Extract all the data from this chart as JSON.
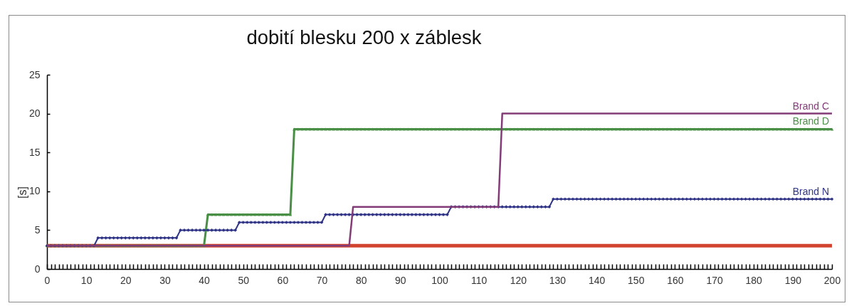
{
  "chart_data": {
    "type": "line",
    "title": "dobití blesku 200 x záblesk",
    "ylabel": "[s]",
    "xlim": [
      0,
      200
    ],
    "ylim": [
      0,
      25
    ],
    "yticks": [
      0,
      5,
      10,
      15,
      20,
      25
    ],
    "xticks": [
      0,
      {
        "value": 1,
        "label": null
      },
      {
        "value": 2,
        "label": null
      },
      {
        "value": 3,
        "label": null
      },
      {
        "value": 4,
        "label": null
      },
      {
        "value": 5,
        "label": null
      },
      {
        "value": 6,
        "label": null
      },
      {
        "value": 7,
        "label": null
      },
      {
        "value": 8,
        "label": null
      },
      {
        "value": 9,
        "label": null
      },
      10,
      {
        "value": 11,
        "label": null
      },
      {
        "value": 12,
        "label": null
      },
      {
        "value": 13,
        "label": null
      },
      {
        "value": 14,
        "label": null
      },
      {
        "value": 15,
        "label": null
      },
      {
        "value": 16,
        "label": null
      },
      {
        "value": 17,
        "label": null
      },
      {
        "value": 18,
        "label": null
      },
      {
        "value": 19,
        "label": null
      },
      20,
      {
        "value": 21,
        "label": null
      },
      {
        "value": 22,
        "label": null
      },
      {
        "value": 23,
        "label": null
      },
      {
        "value": 24,
        "label": null
      },
      {
        "value": 25,
        "label": null
      },
      {
        "value": 26,
        "label": null
      },
      {
        "value": 27,
        "label": null
      },
      {
        "value": 28,
        "label": null
      },
      {
        "value": 29,
        "label": null
      },
      30,
      {
        "value": 31,
        "label": null
      },
      {
        "value": 32,
        "label": null
      },
      {
        "value": 33,
        "label": null
      },
      {
        "value": 34,
        "label": null
      },
      {
        "value": 35,
        "label": null
      },
      {
        "value": 36,
        "label": null
      },
      {
        "value": 37,
        "label": null
      },
      {
        "value": 38,
        "label": null
      },
      {
        "value": 39,
        "label": null
      },
      40,
      {
        "value": 41,
        "label": null
      },
      {
        "value": 42,
        "label": null
      },
      {
        "value": 43,
        "label": null
      },
      {
        "value": 44,
        "label": null
      },
      {
        "value": 45,
        "label": null
      },
      {
        "value": 46,
        "label": null
      },
      {
        "value": 47,
        "label": null
      },
      {
        "value": 48,
        "label": null
      },
      {
        "value": 49,
        "label": null
      },
      50,
      {
        "value": 51,
        "label": null
      },
      {
        "value": 52,
        "label": null
      },
      {
        "value": 53,
        "label": null
      },
      {
        "value": 54,
        "label": null
      },
      {
        "value": 55,
        "label": null
      },
      {
        "value": 56,
        "label": null
      },
      {
        "value": 57,
        "label": null
      },
      {
        "value": 58,
        "label": null
      },
      {
        "value": 59,
        "label": null
      },
      60,
      {
        "value": 61,
        "label": null
      },
      {
        "value": 62,
        "label": null
      },
      {
        "value": 63,
        "label": null
      },
      {
        "value": 64,
        "label": null
      },
      {
        "value": 65,
        "label": null
      },
      {
        "value": 66,
        "label": null
      },
      {
        "value": 67,
        "label": null
      },
      {
        "value": 68,
        "label": null
      },
      {
        "value": 69,
        "label": null
      },
      70,
      {
        "value": 71,
        "label": null
      },
      {
        "value": 72,
        "label": null
      },
      {
        "value": 73,
        "label": null
      },
      {
        "value": 74,
        "label": null
      },
      {
        "value": 75,
        "label": null
      },
      {
        "value": 76,
        "label": null
      },
      {
        "value": 77,
        "label": null
      },
      {
        "value": 78,
        "label": null
      },
      {
        "value": 79,
        "label": null
      },
      80,
      {
        "value": 81,
        "label": null
      },
      {
        "value": 82,
        "label": null
      },
      {
        "value": 83,
        "label": null
      },
      {
        "value": 84,
        "label": null
      },
      {
        "value": 85,
        "label": null
      },
      {
        "value": 86,
        "label": null
      },
      {
        "value": 87,
        "label": null
      },
      {
        "value": 88,
        "label": null
      },
      {
        "value": 89,
        "label": null
      },
      90,
      {
        "value": 91,
        "label": null
      },
      {
        "value": 92,
        "label": null
      },
      {
        "value": 93,
        "label": null
      },
      {
        "value": 94,
        "label": null
      },
      {
        "value": 95,
        "label": null
      },
      {
        "value": 96,
        "label": null
      },
      {
        "value": 97,
        "label": null
      },
      {
        "value": 98,
        "label": null
      },
      {
        "value": 99,
        "label": null
      },
      100,
      {
        "value": 101,
        "label": null
      },
      {
        "value": 102,
        "label": null
      },
      {
        "value": 103,
        "label": null
      },
      {
        "value": 104,
        "label": null
      },
      {
        "value": 105,
        "label": null
      },
      {
        "value": 106,
        "label": null
      },
      {
        "value": 107,
        "label": null
      },
      {
        "value": 108,
        "label": null
      },
      {
        "value": 109,
        "label": null
      },
      110,
      {
        "value": 111,
        "label": null
      },
      {
        "value": 112,
        "label": null
      },
      {
        "value": 113,
        "label": null
      },
      {
        "value": 114,
        "label": null
      },
      {
        "value": 115,
        "label": null
      },
      {
        "value": 116,
        "label": null
      },
      {
        "value": 117,
        "label": null
      },
      {
        "value": 118,
        "label": null
      },
      {
        "value": 119,
        "label": null
      },
      120,
      {
        "value": 121,
        "label": null
      },
      {
        "value": 122,
        "label": null
      },
      {
        "value": 123,
        "label": null
      },
      {
        "value": 124,
        "label": null
      },
      {
        "value": 125,
        "label": null
      },
      {
        "value": 126,
        "label": null
      },
      {
        "value": 127,
        "label": null
      },
      {
        "value": 128,
        "label": null
      },
      {
        "value": 129,
        "label": null
      },
      130,
      {
        "value": 131,
        "label": null
      },
      {
        "value": 132,
        "label": null
      },
      {
        "value": 133,
        "label": null
      },
      {
        "value": 134,
        "label": null
      },
      {
        "value": 135,
        "label": null
      },
      {
        "value": 136,
        "label": null
      },
      {
        "value": 137,
        "label": null
      },
      {
        "value": 138,
        "label": null
      },
      {
        "value": 139,
        "label": null
      },
      140,
      {
        "value": 141,
        "label": null
      },
      {
        "value": 142,
        "label": null
      },
      {
        "value": 143,
        "label": null
      },
      {
        "value": 144,
        "label": null
      },
      {
        "value": 145,
        "label": null
      },
      {
        "value": 146,
        "label": null
      },
      {
        "value": 147,
        "label": null
      },
      {
        "value": 148,
        "label": null
      },
      {
        "value": 149,
        "label": null
      },
      150,
      {
        "value": 151,
        "label": null
      },
      {
        "value": 152,
        "label": null
      },
      {
        "value": 153,
        "label": null
      },
      {
        "value": 154,
        "label": null
      },
      {
        "value": 155,
        "label": null
      },
      {
        "value": 156,
        "label": null
      },
      {
        "value": 157,
        "label": null
      },
      {
        "value": 158,
        "label": null
      },
      {
        "value": 159,
        "label": null
      },
      160,
      {
        "value": 161,
        "label": null
      },
      {
        "value": 162,
        "label": null
      },
      {
        "value": 163,
        "label": null
      },
      {
        "value": 164,
        "label": null
      },
      {
        "value": 165,
        "label": null
      },
      {
        "value": 166,
        "label": null
      },
      {
        "value": 167,
        "label": null
      },
      {
        "value": 168,
        "label": null
      },
      {
        "value": 169,
        "label": null
      },
      170,
      {
        "value": 171,
        "label": null
      },
      {
        "value": 172,
        "label": null
      },
      {
        "value": 173,
        "label": null
      },
      {
        "value": 174,
        "label": null
      },
      {
        "value": 175,
        "label": null
      },
      {
        "value": 176,
        "label": null
      },
      {
        "value": 177,
        "label": null
      },
      {
        "value": 178,
        "label": null
      },
      {
        "value": 179,
        "label": null
      },
      180,
      {
        "value": 181,
        "label": null
      },
      {
        "value": 182,
        "label": null
      },
      {
        "value": 183,
        "label": null
      },
      {
        "value": 184,
        "label": null
      },
      {
        "value": 185,
        "label": null
      },
      {
        "value": 186,
        "label": null
      },
      {
        "value": 187,
        "label": null
      },
      {
        "value": 188,
        "label": null
      },
      {
        "value": 189,
        "label": null
      },
      190,
      {
        "value": 191,
        "label": null
      },
      {
        "value": 192,
        "label": null
      },
      {
        "value": 193,
        "label": null
      },
      {
        "value": 194,
        "label": null
      },
      {
        "value": 195,
        "label": null
      },
      {
        "value": 196,
        "label": null
      },
      {
        "value": 197,
        "label": null
      },
      {
        "value": 198,
        "label": null
      },
      {
        "value": 199,
        "label": null
      },
      200
    ],
    "x": [
      0,
      1,
      2,
      3,
      4,
      5,
      6,
      7,
      8,
      9,
      10,
      11,
      12,
      13,
      14,
      15,
      16,
      17,
      18,
      19,
      20,
      21,
      22,
      23,
      24,
      25,
      26,
      27,
      28,
      29,
      30,
      31,
      32,
      33,
      34,
      35,
      36,
      37,
      38,
      39,
      40,
      41,
      42,
      43,
      44,
      45,
      46,
      47,
      48,
      49,
      50,
      51,
      52,
      53,
      54,
      55,
      56,
      57,
      58,
      59,
      60,
      61,
      62,
      63,
      64,
      65,
      66,
      67,
      68,
      69,
      70,
      71,
      72,
      73,
      74,
      75,
      76,
      77,
      78,
      79,
      80,
      81,
      82,
      83,
      84,
      85,
      86,
      87,
      88,
      89,
      90,
      91,
      92,
      93,
      94,
      95,
      96,
      97,
      98,
      99,
      100,
      101,
      102,
      103,
      104,
      105,
      106,
      107,
      108,
      109,
      110,
      111,
      112,
      113,
      114,
      115,
      116,
      117,
      118,
      119,
      120,
      121,
      122,
      123,
      124,
      125,
      126,
      127,
      128,
      129,
      130,
      131,
      132,
      133,
      134,
      135,
      136,
      137,
      138,
      139,
      140,
      141,
      142,
      143,
      144,
      145,
      146,
      147,
      148,
      149,
      150,
      151,
      152,
      153,
      154,
      155,
      156,
      157,
      158,
      159,
      160,
      161,
      162,
      163,
      164,
      165,
      166,
      167,
      168,
      169,
      170,
      171,
      172,
      173,
      174,
      175,
      176,
      177,
      178,
      179,
      180,
      181,
      182,
      183,
      184,
      185,
      186,
      187,
      188,
      189,
      190,
      191,
      192,
      193,
      194,
      195,
      196,
      197,
      198,
      199,
      200
    ],
    "series": [
      {
        "color": "#d2432f",
        "marker": "none",
        "x": [
          0,
          200
        ],
        "values": [
          3,
          3
        ]
      },
      {
        "name": "Brand D",
        "color": "#4a8f46",
        "marker": "triangle",
        "values": [
          3,
          3,
          3,
          3,
          3,
          3,
          3,
          3,
          3,
          3,
          3,
          3,
          3,
          3,
          3,
          3,
          3,
          3,
          3,
          3,
          3,
          3,
          3,
          3,
          3,
          3,
          3,
          3,
          3,
          3,
          3,
          3,
          3,
          3,
          3,
          3,
          3,
          3,
          3,
          3,
          3,
          7,
          7,
          7,
          7,
          7,
          7,
          7,
          7,
          7,
          7,
          7,
          7,
          7,
          7,
          7,
          7,
          7,
          7,
          7,
          7,
          7,
          7,
          18,
          18,
          18,
          18,
          18,
          18,
          18,
          18,
          18,
          18,
          18,
          18,
          18,
          18,
          18,
          18,
          18,
          18,
          18,
          18,
          18,
          18,
          18,
          18,
          18,
          18,
          18,
          18,
          18,
          18,
          18,
          18,
          18,
          18,
          18,
          18,
          18,
          18,
          18,
          18,
          18,
          18,
          18,
          18,
          18,
          18,
          18,
          18,
          18,
          18,
          18,
          18,
          18,
          18,
          18,
          18,
          18,
          18,
          18,
          18,
          18,
          18,
          18,
          18,
          18,
          18,
          18,
          18,
          18,
          18,
          18,
          18,
          18,
          18,
          18,
          18,
          18,
          18,
          18,
          18,
          18,
          18,
          18,
          18,
          18,
          18,
          18,
          18,
          18,
          18,
          18,
          18,
          18,
          18,
          18,
          18,
          18,
          18,
          18,
          18,
          18,
          18,
          18,
          18,
          18,
          18,
          18,
          18,
          18,
          18,
          18,
          18,
          18,
          18,
          18,
          18,
          18,
          18,
          18,
          18,
          18,
          18,
          18,
          18,
          18,
          18,
          18,
          18,
          18,
          18,
          18,
          18,
          18,
          18,
          18,
          18,
          18,
          18
        ]
      },
      {
        "name": "Brand N",
        "color": "#2e3386",
        "marker": "diamond",
        "values": [
          3,
          3,
          3,
          3,
          3,
          3,
          3,
          3,
          3,
          3,
          3,
          3,
          3,
          4,
          4,
          4,
          4,
          4,
          4,
          4,
          4,
          4,
          4,
          4,
          4,
          4,
          4,
          4,
          4,
          4,
          4,
          4,
          4,
          4,
          5,
          5,
          5,
          5,
          5,
          5,
          5,
          5,
          5,
          5,
          5,
          5,
          5,
          5,
          5,
          6,
          6,
          6,
          6,
          6,
          6,
          6,
          6,
          6,
          6,
          6,
          6,
          6,
          6,
          6,
          6,
          6,
          6,
          6,
          6,
          6,
          6,
          7,
          7,
          7,
          7,
          7,
          7,
          7,
          7,
          7,
          7,
          7,
          7,
          7,
          7,
          7,
          7,
          7,
          7,
          7,
          7,
          7,
          7,
          7,
          7,
          7,
          7,
          7,
          7,
          7,
          7,
          7,
          7,
          8,
          8,
          8,
          8,
          8,
          8,
          8,
          8,
          8,
          8,
          8,
          8,
          8,
          8,
          8,
          8,
          8,
          8,
          8,
          8,
          8,
          8,
          8,
          8,
          8,
          8,
          9,
          9,
          9,
          9,
          9,
          9,
          9,
          9,
          9,
          9,
          9,
          9,
          9,
          9,
          9,
          9,
          9,
          9,
          9,
          9,
          9,
          9,
          9,
          9,
          9,
          9,
          9,
          9,
          9,
          9,
          9,
          9,
          9,
          9,
          9,
          9,
          9,
          9,
          9,
          9,
          9,
          9,
          9,
          9,
          9,
          9,
          9,
          9,
          9,
          9,
          9,
          9,
          9,
          9,
          9,
          9,
          9,
          9,
          9,
          9,
          9,
          9,
          9,
          9,
          9,
          9,
          9,
          9,
          9,
          9,
          9,
          9
        ]
      },
      {
        "name": "Brand C",
        "color": "#843c78",
        "marker": "none",
        "x": [
          0,
          77,
          78,
          115,
          116,
          200
        ],
        "values": [
          3,
          3,
          8,
          8,
          20,
          20
        ]
      }
    ]
  }
}
